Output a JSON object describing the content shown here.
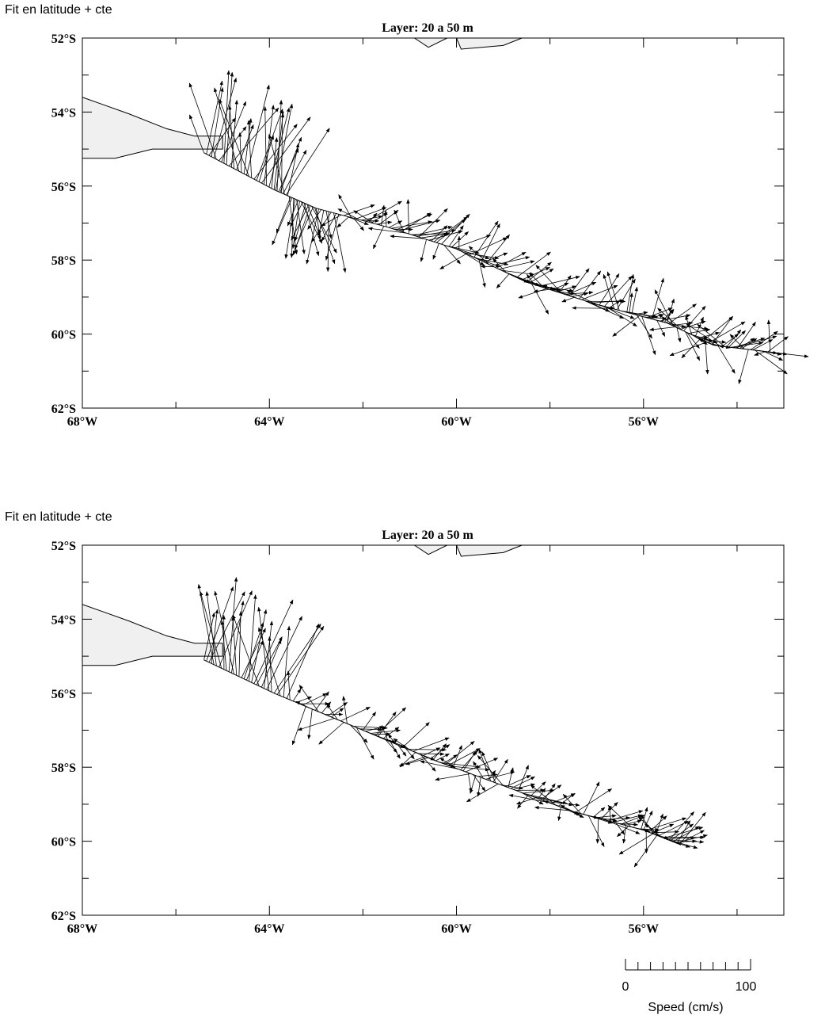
{
  "panels": [
    {
      "label": "Fit en latitude + cte",
      "title": "Layer:  20 a 50 m"
    },
    {
      "label": "Fit en latitude + cte",
      "title": "Layer:  20 a 50 m"
    }
  ],
  "map": {
    "lon_range": [
      -68,
      -53
    ],
    "lat_range": [
      -62,
      -52
    ],
    "x_tick_labels": [
      "68°W",
      "64°W",
      "60°W",
      "56°W"
    ],
    "x_tick_values": [
      -68,
      -64,
      -60,
      -56
    ],
    "y_tick_labels": [
      "52°S",
      "54°S",
      "56°S",
      "58°S",
      "60°S",
      "62°S"
    ],
    "y_tick_values": [
      -52,
      -54,
      -56,
      -58,
      -60,
      -62
    ],
    "land_color": "#f0f0f0"
  },
  "scale": {
    "min_label": "0",
    "max_label": "100",
    "units_label": "Speed (cm/s)"
  }
}
